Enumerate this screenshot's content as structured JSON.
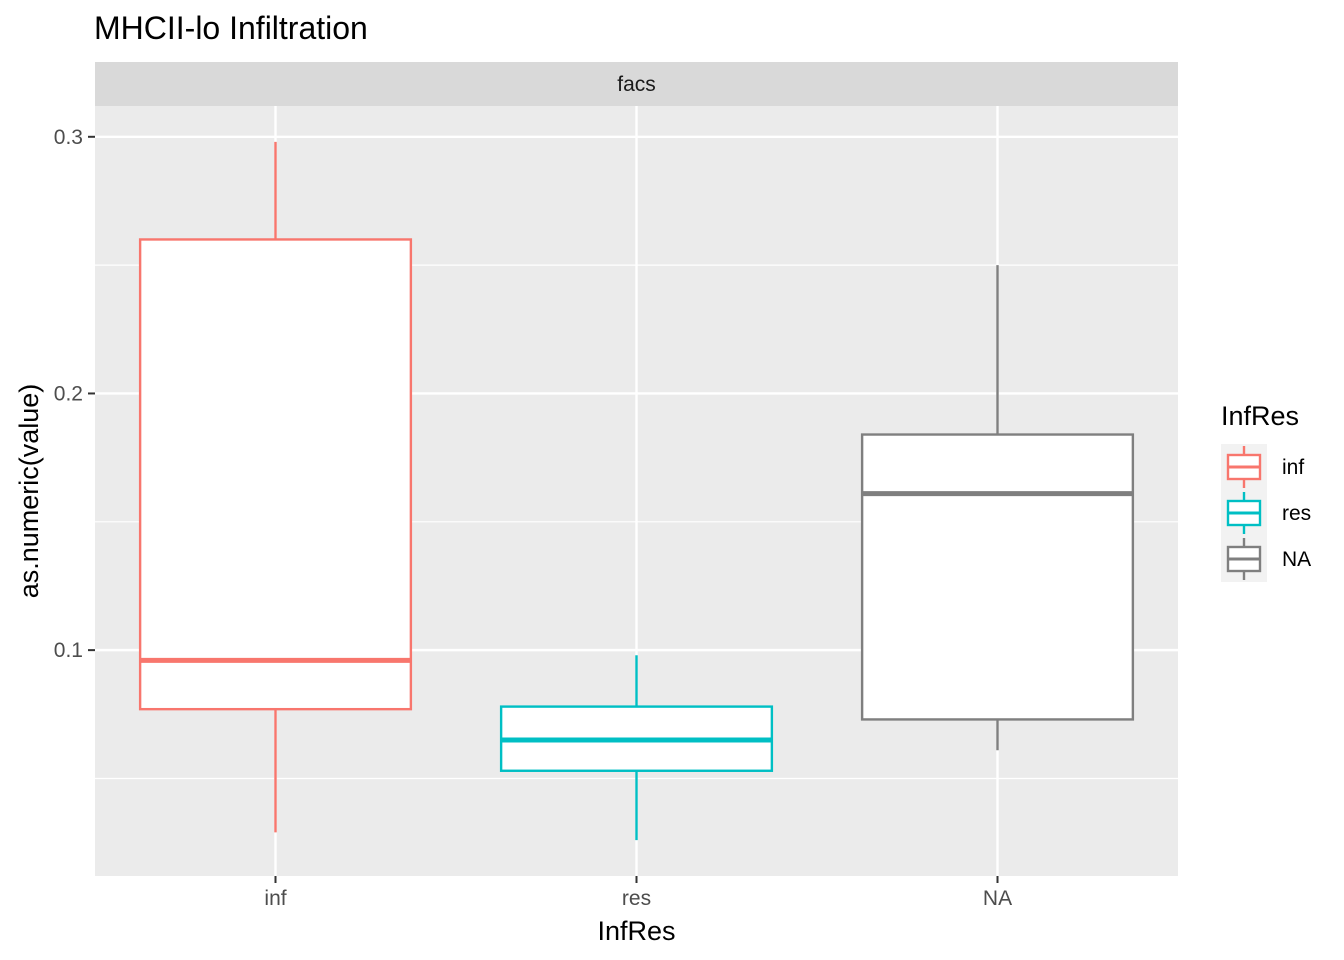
{
  "chart_data": {
    "type": "boxplot",
    "title": "MHCII-lo Infiltration",
    "facet": "facs",
    "xlabel": "InfRes",
    "ylabel": "as.numeric(value)",
    "ylim": [
      0.012,
      0.312
    ],
    "y_ticks": [
      0.1,
      0.2,
      0.3
    ],
    "y_tick_labels": [
      "0.1",
      "0.2",
      "0.3"
    ],
    "y_minor": [
      0.05,
      0.15,
      0.25
    ],
    "grid": true,
    "legend": {
      "title": "InfRes",
      "position": "right",
      "entries": [
        "inf",
        "res",
        "NA"
      ]
    },
    "categories": [
      "inf",
      "res",
      "NA"
    ],
    "boxes": [
      {
        "category": "inf",
        "color": "#F8766D",
        "min": 0.029,
        "q1": 0.077,
        "median": 0.096,
        "q3": 0.26,
        "max": 0.298
      },
      {
        "category": "res",
        "color": "#00BFC4",
        "min": 0.026,
        "q1": 0.053,
        "median": 0.065,
        "q3": 0.078,
        "max": 0.098
      },
      {
        "category": "NA",
        "color": "#7F7F7F",
        "min": 0.061,
        "q1": 0.073,
        "median": 0.161,
        "q3": 0.184,
        "max": 0.25
      }
    ]
  }
}
